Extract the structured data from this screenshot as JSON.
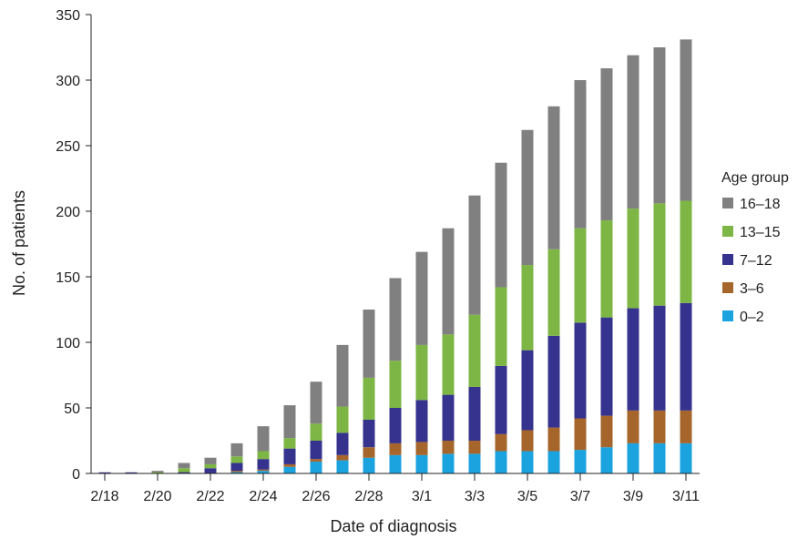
{
  "chart_data": {
    "type": "bar",
    "stacked": true,
    "xlabel": "Date of diagnosis",
    "ylabel": "No. of patients",
    "ylim": [
      0,
      350
    ],
    "yticks": [
      0,
      50,
      100,
      150,
      200,
      250,
      300,
      350
    ],
    "categories": [
      "2/18",
      "2/19",
      "2/20",
      "2/21",
      "2/22",
      "2/23",
      "2/24",
      "2/25",
      "2/26",
      "2/27",
      "2/28",
      "2/29",
      "3/1",
      "3/2",
      "3/3",
      "3/4",
      "3/5",
      "3/6",
      "3/7",
      "3/8",
      "3/9",
      "3/10",
      "3/11"
    ],
    "xtick_labels": [
      "2/18",
      "2/20",
      "2/22",
      "2/24",
      "2/26",
      "2/28",
      "3/1",
      "3/3",
      "3/5",
      "3/7",
      "3/9",
      "3/11"
    ],
    "legend": {
      "title": "Age group",
      "position": "right"
    },
    "series": [
      {
        "name": "0–2",
        "color": "#1ba3e0",
        "values": [
          0,
          0,
          0,
          0,
          0,
          1,
          2,
          5,
          9,
          10,
          12,
          14,
          14,
          15,
          15,
          17,
          17,
          17,
          18,
          20,
          23,
          23,
          23
        ]
      },
      {
        "name": "3–6",
        "color": "#a5652b",
        "values": [
          0,
          0,
          0,
          0,
          0,
          1,
          1,
          2,
          2,
          4,
          8,
          9,
          10,
          10,
          10,
          13,
          16,
          18,
          24,
          24,
          25,
          25,
          25
        ]
      },
      {
        "name": "7–12",
        "color": "#35338d",
        "values": [
          0,
          0,
          0,
          1,
          4,
          6,
          8,
          12,
          14,
          17,
          21,
          27,
          32,
          35,
          41,
          52,
          61,
          70,
          73,
          75,
          78,
          80,
          82
        ]
      },
      {
        "name": "13–15",
        "color": "#7db645",
        "values": [
          0,
          0,
          1,
          3,
          3,
          5,
          6,
          8,
          13,
          20,
          32,
          36,
          42,
          46,
          55,
          60,
          65,
          66,
          72,
          74,
          76,
          78,
          78
        ]
      },
      {
        "name": "16–18",
        "color": "#808080",
        "values": [
          0,
          0,
          1,
          4,
          5,
          10,
          19,
          25,
          32,
          47,
          52,
          63,
          71,
          81,
          91,
          95,
          103,
          109,
          113,
          116,
          117,
          119,
          123
        ]
      }
    ]
  }
}
